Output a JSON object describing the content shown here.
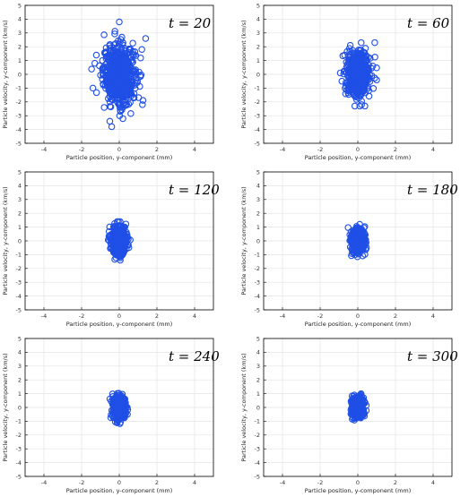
{
  "style": {
    "marker_color": "#1f4fe6",
    "axis_color": "#000000",
    "grid_color": "#e3e3e3"
  },
  "chart_data": [
    {
      "type": "scatter",
      "annotation": "t = 20",
      "xlabel": "Particle position, y-component (mm)",
      "ylabel": "Particle velocity, y-component (km/s)",
      "xlim": [
        -5,
        5
      ],
      "ylim": [
        -5,
        5
      ],
      "xticks": [
        -4,
        -2,
        0,
        2,
        4
      ],
      "yticks": [
        -5,
        -4,
        -3,
        -2,
        -1,
        0,
        1,
        2,
        3,
        4,
        5
      ],
      "grid": true,
      "marker": "open circle",
      "cloud": {
        "cx": 0.0,
        "cy": 0.0,
        "sx": 0.42,
        "sy": 1.05,
        "n": 700,
        "x_range": [
          -1.6,
          1.6
        ],
        "y_range": [
          -3.9,
          3.8
        ]
      },
      "outliers": [
        [
          0.0,
          3.8
        ],
        [
          -0.4,
          -3.8
        ],
        [
          -0.5,
          -3.4
        ],
        [
          1.4,
          2.6
        ],
        [
          -1.3,
          0.8
        ],
        [
          -1.4,
          -1.0
        ],
        [
          1.2,
          1.8
        ],
        [
          -0.8,
          -2.4
        ]
      ]
    },
    {
      "type": "scatter",
      "annotation": "t = 60",
      "xlabel": "Particle position, y-component (mm)",
      "ylabel": "Particle velocity, y-component (km/s)",
      "xlim": [
        -5,
        5
      ],
      "ylim": [
        -5,
        5
      ],
      "xticks": [
        -4,
        -2,
        0,
        2,
        4
      ],
      "yticks": [
        -5,
        -4,
        -3,
        -2,
        -1,
        0,
        1,
        2,
        3,
        4,
        5
      ],
      "grid": true,
      "marker": "open circle",
      "cloud": {
        "cx": 0.0,
        "cy": 0.0,
        "sx": 0.3,
        "sy": 0.75,
        "n": 650,
        "x_range": [
          -1.0,
          1.0
        ],
        "y_range": [
          -2.3,
          2.3
        ]
      },
      "outliers": [
        [
          0.9,
          2.3
        ],
        [
          -0.4,
          2.1
        ],
        [
          0.2,
          -2.2
        ],
        [
          -0.7,
          1.4
        ]
      ]
    },
    {
      "type": "scatter",
      "annotation": "t = 120",
      "xlabel": "Particle position, y-component (mm)",
      "ylabel": "Particle velocity, y-component (km/s)",
      "xlim": [
        -5,
        5
      ],
      "ylim": [
        -5,
        5
      ],
      "xticks": [
        -4,
        -2,
        0,
        2,
        4
      ],
      "yticks": [
        -5,
        -4,
        -3,
        -2,
        -1,
        0,
        1,
        2,
        3,
        4,
        5
      ],
      "grid": true,
      "marker": "open circle",
      "cloud": {
        "cx": 0.0,
        "cy": 0.0,
        "sx": 0.2,
        "sy": 0.5,
        "n": 550,
        "x_range": [
          -0.6,
          0.6
        ],
        "y_range": [
          -1.4,
          1.4
        ]
      },
      "outliers": []
    },
    {
      "type": "scatter",
      "annotation": "t = 180",
      "xlabel": "Particle position, y-component (mm)",
      "ylabel": "Particle velocity, y-component (km/s)",
      "xlim": [
        -5,
        5
      ],
      "ylim": [
        -5,
        5
      ],
      "xticks": [
        -4,
        -2,
        0,
        2,
        4
      ],
      "yticks": [
        -5,
        -4,
        -3,
        -2,
        -1,
        0,
        1,
        2,
        3,
        4,
        5
      ],
      "grid": true,
      "marker": "open circle",
      "cloud": {
        "cx": 0.0,
        "cy": 0.0,
        "sx": 0.18,
        "sy": 0.45,
        "n": 500,
        "x_range": [
          -0.55,
          0.5
        ],
        "y_range": [
          -1.3,
          1.2
        ]
      },
      "outliers": []
    },
    {
      "type": "scatter",
      "annotation": "t = 240",
      "xlabel": "Particle position, y-component (mm)",
      "ylabel": "Particle velocity, y-component (km/s)",
      "xlim": [
        -5,
        5
      ],
      "ylim": [
        -5,
        5
      ],
      "xticks": [
        -4,
        -2,
        0,
        2,
        4
      ],
      "yticks": [
        -5,
        -4,
        -3,
        -2,
        -1,
        0,
        1,
        2,
        3,
        4,
        5
      ],
      "grid": true,
      "marker": "open circle",
      "cloud": {
        "cx": 0.0,
        "cy": 0.0,
        "sx": 0.16,
        "sy": 0.42,
        "n": 450,
        "x_range": [
          -0.5,
          0.45
        ],
        "y_range": [
          -1.2,
          1.1
        ]
      },
      "outliers": []
    },
    {
      "type": "scatter",
      "annotation": "t = 300",
      "xlabel": "Particle position, y-component (mm)",
      "ylabel": "Particle velocity, y-component (km/s)",
      "xlim": [
        -5,
        5
      ],
      "ylim": [
        -5,
        5
      ],
      "xticks": [
        -4,
        -2,
        0,
        2,
        4
      ],
      "yticks": [
        -5,
        -4,
        -3,
        -2,
        -1,
        0,
        1,
        2,
        3,
        4,
        5
      ],
      "grid": true,
      "marker": "open circle",
      "cloud": {
        "cx": 0.0,
        "cy": 0.0,
        "sx": 0.15,
        "sy": 0.4,
        "n": 420,
        "x_range": [
          -0.45,
          0.45
        ],
        "y_range": [
          -1.1,
          1.0
        ]
      },
      "outliers": []
    }
  ]
}
